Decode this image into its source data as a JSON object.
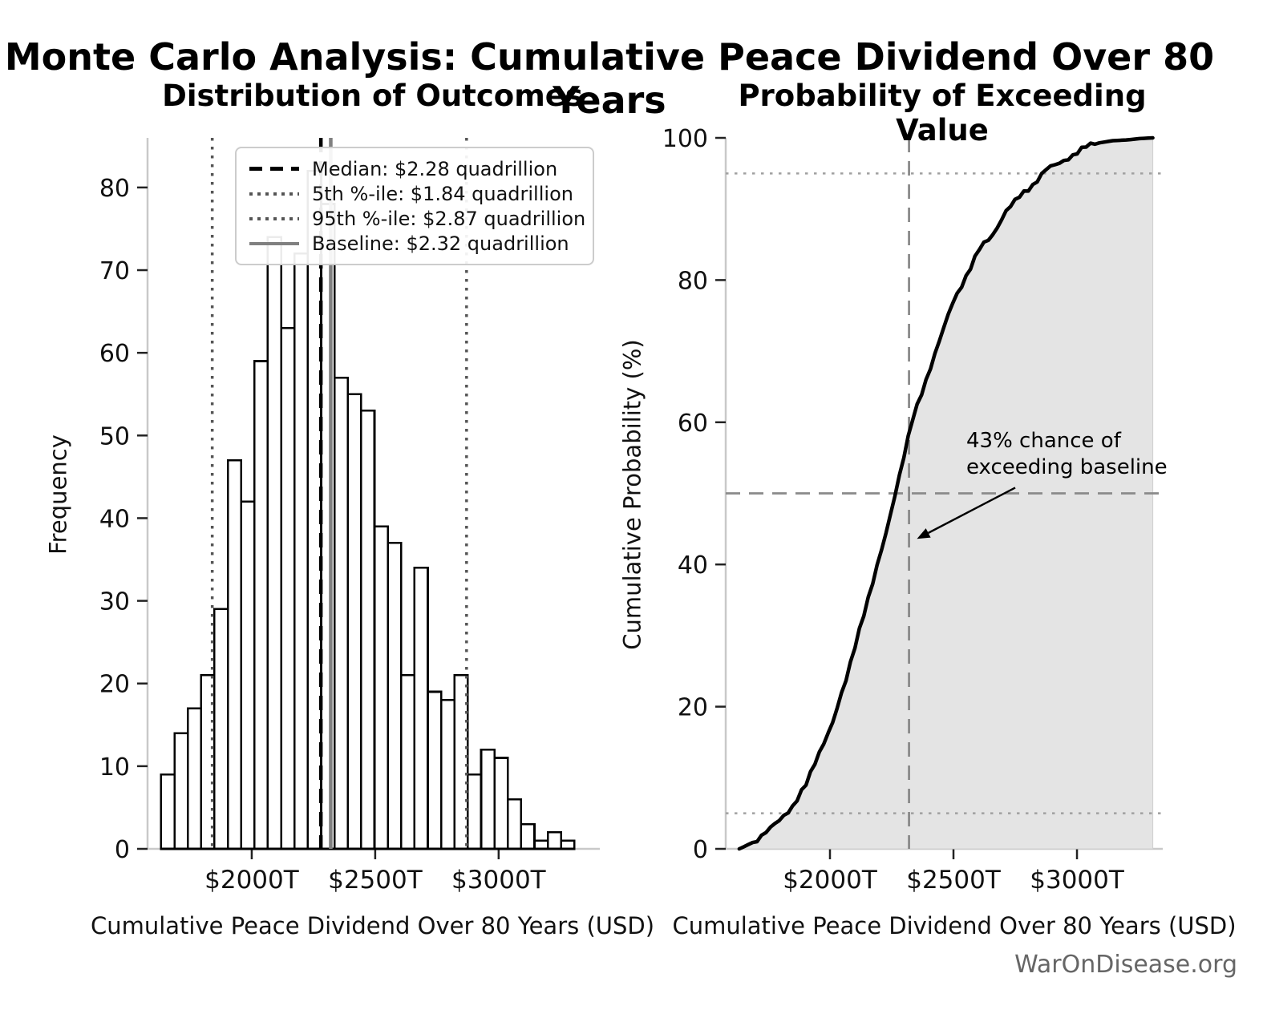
{
  "page": {
    "main_title": "Monte Carlo Analysis: Cumulative Peace Dividend Over 80 Years",
    "watermark": "WarOnDisease.org"
  },
  "chart_data": [
    {
      "type": "bar",
      "subtype": "histogram",
      "title": "Distribution of Outcomes",
      "xlabel": "Cumulative Peace Dividend Over 80 Years (USD)",
      "ylabel": "Frequency",
      "xlim": [
        1578,
        3400
      ],
      "ylim": [
        0,
        86
      ],
      "grid": false,
      "x_ticks": [
        {
          "value": 2000,
          "label": "$2000T"
        },
        {
          "value": 2500,
          "label": "$2500T"
        },
        {
          "value": 3000,
          "label": "$3000T"
        }
      ],
      "y_ticks": [
        0,
        10,
        20,
        30,
        40,
        50,
        60,
        70,
        80
      ],
      "bins_start_trillion": 1633,
      "bin_width_trillion": 54,
      "frequencies": [
        9,
        14,
        17,
        21,
        29,
        47,
        42,
        59,
        74,
        63,
        72,
        82,
        78,
        57,
        55,
        53,
        39,
        37,
        21,
        34,
        19,
        18,
        21,
        9,
        12,
        11,
        6,
        3,
        1,
        2,
        1
      ],
      "bar_fill": "#ffffff",
      "bar_edge": "#000000",
      "ref_lines": [
        {
          "name": "median",
          "value": 2280,
          "style": "dashed",
          "color": "#000000",
          "width": 4.5,
          "label": "Median: $2.28 quadrillion"
        },
        {
          "name": "p5",
          "value": 1840,
          "style": "dotted",
          "color": "#555555",
          "width": 3.5,
          "label": "5th %-ile: $1.84 quadrillion"
        },
        {
          "name": "p95",
          "value": 2870,
          "style": "dotted",
          "color": "#555555",
          "width": 3.5,
          "label": "95th %-ile: $2.87 quadrillion"
        },
        {
          "name": "baseline",
          "value": 2320,
          "style": "solid",
          "color": "#808080",
          "width": 4.5,
          "label": "Baseline: $2.32 quadrillion"
        }
      ],
      "legend_position": "upper left"
    },
    {
      "type": "line",
      "subtype": "cdf",
      "title": "Probability of Exceeding Value",
      "xlabel": "Cumulative Peace Dividend Over 80 Years (USD)",
      "ylabel": "Cumulative Probability (%)",
      "xlim": [
        1578,
        3331
      ],
      "ylim": [
        0,
        100
      ],
      "grid": false,
      "x_ticks": [
        {
          "value": 2000,
          "label": "$2000T"
        },
        {
          "value": 2500,
          "label": "$2500T"
        },
        {
          "value": 3000,
          "label": "$3000T"
        }
      ],
      "y_ticks": [
        0,
        20,
        40,
        60,
        80,
        100
      ],
      "line_color": "#000000",
      "line_width": 4.5,
      "fill_color": "#e4e4e4",
      "guide_lines": [
        {
          "orient": "h",
          "value": 95,
          "style": "dotted",
          "color": "#a0a0a0",
          "width": 2.5
        },
        {
          "orient": "h",
          "value": 5,
          "style": "dotted",
          "color": "#a0a0a0",
          "width": 2.5
        },
        {
          "orient": "h",
          "value": 50,
          "style": "dashed",
          "color": "#8a8a8a",
          "width": 2.8
        },
        {
          "orient": "v",
          "value": 2320,
          "style": "dashed",
          "color": "#8a8a8a",
          "width": 2.8
        }
      ],
      "annotation": {
        "line1": "43% chance of",
        "line2": "exceeding baseline",
        "arrow_from": [
          2750,
          50.8
        ],
        "arrow_to": [
          2352,
          43.6
        ]
      }
    }
  ]
}
